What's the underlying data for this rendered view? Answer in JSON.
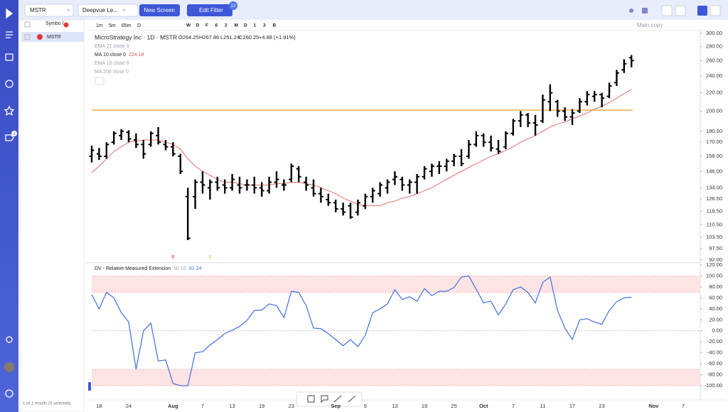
{
  "header": {
    "tabs": [
      "MSTR",
      "Deepvue Le...",
      "New Screen"
    ],
    "edit_filter": "Edit Filter",
    "filter_count": 22,
    "alert_badge": "1"
  },
  "watchlist": {
    "header": "Symbo l",
    "rows": [
      "MSTR"
    ],
    "footer": "1 of 1 results (0 selected)"
  },
  "toolbar": {
    "intervals": [
      "1m",
      "5m",
      "65m",
      "D"
    ],
    "shortcuts": [
      "W",
      "D",
      "F",
      "6",
      "2",
      "M",
      "D",
      "1",
      "3",
      "B"
    ],
    "layout": "Main copy"
  },
  "legend": {
    "title": "MicroStrategy Inc · 1D · MSTR",
    "open": "O264.25",
    "high": "H267.86",
    "low": "L251.24",
    "close": "C260.25",
    "change": "+4.88 (+1.91%)",
    "indicators": [
      "EMA 21 close 0",
      "MA 10 close 0",
      "EMA 10 close 0",
      "MA 200 close 0"
    ]
  },
  "chart_data": [
    {
      "type": "ohlc",
      "log_scale": true,
      "color": "#000000",
      "categories": [
        null,
        "18",
        null,
        null,
        null,
        "24",
        null,
        null,
        null,
        null,
        null,
        "Aug",
        null,
        null,
        null,
        "7",
        null,
        null,
        null,
        "13",
        null,
        null,
        null,
        "19",
        null,
        null,
        null,
        "23",
        null,
        null,
        null,
        null,
        null,
        "Sep",
        null,
        null,
        null,
        "9",
        null,
        null,
        null,
        "13",
        null,
        null,
        null,
        "19",
        null,
        null,
        null,
        "25",
        null,
        null,
        null,
        "Oct",
        null,
        null,
        null,
        "7",
        null,
        null,
        null,
        "11",
        null,
        null,
        null,
        "17",
        null,
        null,
        null,
        "23",
        null,
        null,
        null,
        null,
        null,
        null,
        "Nov",
        null,
        null,
        null,
        "7",
        null
      ],
      "open": [
        158,
        160,
        158,
        170,
        176,
        179,
        172,
        168,
        168,
        176,
        168,
        166,
        158,
        128,
        128,
        138,
        134,
        138,
        136,
        134,
        136,
        136,
        136,
        134,
        132,
        138,
        136,
        140,
        148,
        138,
        134,
        130,
        126,
        124,
        120,
        122,
        118,
        122,
        128,
        130,
        134,
        140,
        140,
        136,
        138,
        142,
        146,
        150,
        150,
        154,
        158,
        158,
        168,
        176,
        170,
        164,
        166,
        178,
        190,
        196,
        188,
        190,
        210,
        210,
        200,
        194,
        200,
        210,
        216,
        218,
        216,
        232,
        248,
        264.25,
        null,
        null,
        null,
        null,
        null,
        null,
        null,
        null
      ],
      "high": [
        167,
        165,
        170,
        180,
        182,
        181,
        178,
        172,
        180,
        184,
        172,
        170,
        160,
        134,
        140,
        146,
        140,
        142,
        140,
        144,
        142,
        140,
        142,
        138,
        142,
        146,
        140,
        152,
        150,
        142,
        140,
        134,
        130,
        126,
        124,
        124,
        126,
        130,
        134,
        138,
        140,
        146,
        142,
        140,
        144,
        150,
        152,
        154,
        156,
        160,
        164,
        172,
        180,
        178,
        176,
        172,
        180,
        192,
        200,
        198,
        196,
        218,
        230,
        212,
        204,
        202,
        214,
        222,
        222,
        220,
        232,
        248,
        262,
        267.86,
        null,
        null,
        null,
        null,
        null,
        null,
        null,
        null
      ],
      "low": [
        153,
        155,
        156,
        168,
        172,
        170,
        165,
        156,
        166,
        168,
        163,
        158,
        144,
        102,
        120,
        130,
        126,
        132,
        130,
        132,
        130,
        132,
        130,
        128,
        130,
        134,
        132,
        138,
        138,
        132,
        128,
        124,
        122,
        118,
        116,
        114,
        116,
        120,
        124,
        128,
        130,
        136,
        132,
        130,
        130,
        140,
        142,
        144,
        146,
        150,
        150,
        156,
        166,
        166,
        162,
        160,
        164,
        176,
        184,
        184,
        176,
        188,
        200,
        194,
        190,
        186,
        198,
        206,
        210,
        204,
        214,
        228,
        244,
        251.24,
        null,
        null,
        null,
        null,
        null,
        null,
        null,
        null
      ],
      "close": [
        163,
        158,
        168,
        178,
        180,
        173,
        168,
        160,
        178,
        170,
        166,
        160,
        146,
        103,
        138,
        136,
        138,
        134,
        134,
        140,
        134,
        136,
        134,
        132,
        138,
        140,
        136,
        150,
        142,
        136,
        130,
        128,
        124,
        120,
        118,
        115,
        124,
        128,
        132,
        136,
        138,
        142,
        136,
        138,
        142,
        148,
        150,
        150,
        154,
        158,
        152,
        168,
        176,
        170,
        165,
        162,
        178,
        190,
        196,
        188,
        186,
        212,
        220,
        200,
        194,
        198,
        210,
        218,
        218,
        214,
        228,
        244,
        256,
        260.25,
        null,
        null,
        null,
        null,
        null,
        null,
        null,
        null
      ],
      "ma": {
        "color": "#e06060",
        "values": [
          145,
          150,
          156,
          162,
          166,
          170,
          171,
          172,
          172,
          172,
          170,
          168,
          164,
          156,
          150,
          146,
          143,
          140,
          138,
          138,
          137,
          136,
          136,
          136,
          136,
          137,
          137,
          138,
          138,
          137,
          136,
          134,
          132,
          130,
          127,
          125,
          123,
          122,
          122,
          122,
          124,
          125,
          127,
          128,
          130,
          132,
          134,
          137,
          140,
          143,
          146,
          149,
          152,
          155,
          158,
          160,
          163,
          166,
          170,
          173,
          176,
          180,
          184,
          187,
          189,
          192,
          195,
          198,
          202,
          205,
          209,
          214,
          219,
          224.18,
          null,
          null,
          null,
          null,
          null,
          null,
          null,
          null
        ]
      },
      "hline": {
        "value": 201,
        "color": "#f0a020"
      },
      "signals": [
        null,
        null,
        null,
        null,
        null,
        null,
        null,
        null,
        null,
        null,
        null,
        "B",
        null,
        null,
        null,
        null,
        "S",
        null,
        null,
        null,
        null,
        null,
        null,
        null,
        null,
        null,
        null,
        null,
        null,
        null,
        null,
        null,
        null,
        null,
        null,
        null,
        null,
        null,
        null,
        null,
        null,
        null,
        null,
        null,
        null,
        null,
        null,
        null,
        null,
        null,
        null,
        null,
        null,
        null,
        null,
        null,
        null,
        null,
        null,
        null,
        null,
        null,
        null,
        null,
        null,
        null,
        null,
        null,
        null,
        null,
        null,
        null,
        null,
        null,
        null,
        null,
        null,
        null,
        null,
        null,
        null,
        null
      ],
      "signal_colors": {
        "B": "#e53935",
        "S": "#f0a020"
      },
      "ylim": [
        90.6,
        305.6
      ],
      "yticks": [
        {
          "value": 300,
          "label": "300.00"
        },
        {
          "value": 280,
          "label": "280.00"
        },
        {
          "value": 260,
          "label": "260.00"
        },
        {
          "value": 240,
          "label": "240.00"
        },
        {
          "value": 220,
          "label": "220.00"
        },
        {
          "value": 200,
          "label": "200.00"
        },
        {
          "value": 180,
          "label": "180.00"
        },
        {
          "value": 170,
          "label": "170.00"
        },
        {
          "value": 158,
          "label": "158.00"
        },
        {
          "value": 146,
          "label": "146.00"
        },
        {
          "value": 134,
          "label": "134.00"
        },
        {
          "value": 126.5,
          "label": "126.50"
        },
        {
          "value": 118.5,
          "label": "118.50"
        },
        {
          "value": 110.5,
          "label": "110.50"
        },
        {
          "value": 103.5,
          "label": "103.50"
        },
        {
          "value": 97.5,
          "label": "97.50"
        },
        {
          "value": 92,
          "label": "92.00"
        }
      ]
    },
    {
      "type": "line",
      "title": "DV - Relative Measured Extension",
      "params": "50 10",
      "series": [
        {
          "color": "#3f6fe0",
          "values": [
            66,
            40,
            70,
            60,
            33,
            16,
            -70,
            0,
            14,
            -55,
            -53,
            -96,
            -100,
            -100,
            -40,
            -38,
            -26,
            -16,
            -5,
            1,
            8,
            19,
            37,
            38,
            49,
            46,
            24,
            72,
            70,
            46,
            5,
            4,
            -5,
            -16,
            -27,
            -16,
            -29,
            -8,
            33,
            40,
            49,
            75,
            57,
            62,
            54,
            77,
            64,
            72,
            72,
            79,
            98,
            100,
            76,
            51,
            54,
            29,
            49,
            75,
            80,
            70,
            51,
            88,
            98,
            37,
            5,
            -16,
            20,
            22,
            16,
            12,
            37,
            53,
            60,
            61.24,
            null,
            null,
            null,
            null,
            null,
            null,
            null,
            null
          ]
        }
      ],
      "bands": [
        [
          70,
          100
        ],
        [
          -100,
          -70
        ]
      ],
      "band_color": "#fde3e3",
      "zero_line": 0,
      "ylim": [
        -106.5,
        123.9
      ],
      "yticks": [
        {
          "value": 120,
          "label": "120.00"
        },
        {
          "value": 100,
          "label": "100.00"
        },
        {
          "value": 80,
          "label": "80.00"
        },
        {
          "value": 60,
          "label": "60.00"
        },
        {
          "value": 40,
          "label": "40.00"
        },
        {
          "value": 20,
          "label": "20.00"
        },
        {
          "value": 0,
          "label": "0.00"
        },
        {
          "value": -20,
          "label": "-20.00"
        },
        {
          "value": -40,
          "label": "-40.00"
        },
        {
          "value": -60,
          "label": "-60.00"
        },
        {
          "value": -80,
          "label": "-80.00"
        },
        {
          "value": -100,
          "label": "-100.00"
        }
      ]
    }
  ]
}
